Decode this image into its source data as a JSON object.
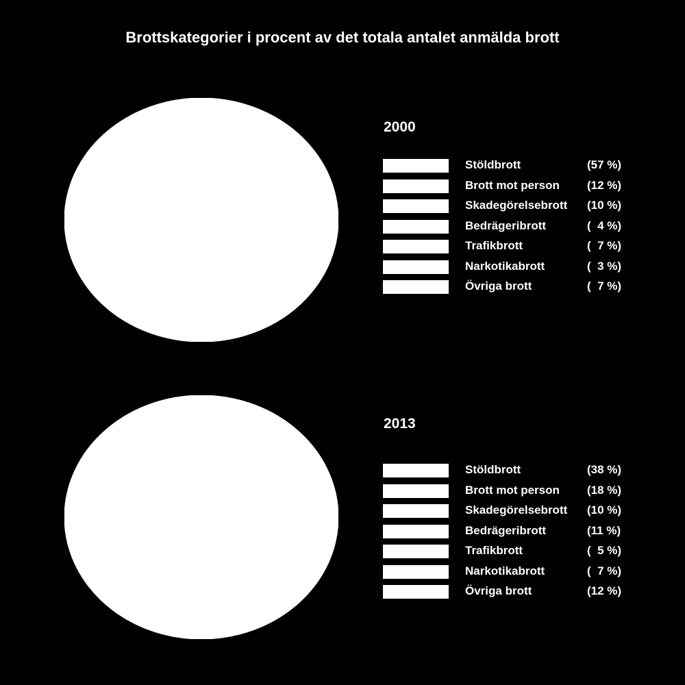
{
  "chart_data": [
    {
      "type": "pie",
      "title": "Brottskategorier i procent av det totala antalet anmälda brott",
      "subtitle": "2000",
      "categories": [
        "Stöldbrott",
        "Brott mot person",
        "Skadegörelsebrott",
        "Bedrägeribrott",
        "Trafikbrott",
        "Narkotikabrott",
        "Övriga brott"
      ],
      "values": [
        57,
        12,
        10,
        4,
        7,
        3,
        7
      ],
      "value_labels": [
        "(57 %)",
        "(12 %)",
        "(10 %)",
        "(  4 %)",
        "(  7 %)",
        "(  3 %)",
        "(  7 %)"
      ],
      "slice_color": "#ffffff",
      "legend": "right"
    },
    {
      "type": "pie",
      "subtitle": "2013",
      "categories": [
        "Stöldbrott",
        "Brott mot person",
        "Skadegörelsebrott",
        "Bedrägeribrott",
        "Trafikbrott",
        "Narkotikabrott",
        "Övriga brott"
      ],
      "values": [
        38,
        18,
        10,
        11,
        5,
        7,
        12
      ],
      "value_labels": [
        "(38 %)",
        "(18 %)",
        "(10 %)",
        "(11 %)",
        "(  5 %)",
        "(  7 %)",
        "(12 %)"
      ],
      "slice_color": "#ffffff",
      "legend": "right"
    }
  ],
  "colors": {
    "background": "#000000",
    "foreground": "#ffffff"
  }
}
